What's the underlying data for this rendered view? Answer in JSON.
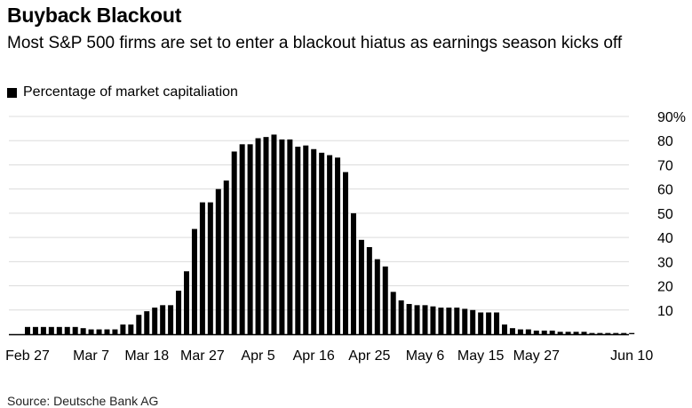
{
  "header": {
    "title": "Buyback Blackout",
    "subtitle": "Most S&P 500 firms are set to enter a blackout hiatus as earnings season kicks off"
  },
  "legend": {
    "label": "Percentage of market capitaliation"
  },
  "footer": {
    "source": "Source: Deutsche Bank AG"
  },
  "colors": {
    "bar": "#000000",
    "grid": "#dcdcdc",
    "axis": "#000000",
    "text": "#000000"
  },
  "chart_data": {
    "type": "bar",
    "title": "Buyback Blackout",
    "subtitle": "Most S&P 500 firms are set to enter a blackout hiatus as earnings season kicks off",
    "legend": [
      "Percentage of market capitaliation"
    ],
    "xlabel": "",
    "ylabel": "Percentage of market capitaliation",
    "ylim": [
      0,
      90
    ],
    "yticks": [
      10,
      20,
      30,
      40,
      50,
      60,
      70,
      80,
      90
    ],
    "ytick_labels": [
      "10",
      "20",
      "30",
      "40",
      "50",
      "60",
      "70",
      "80",
      "90%"
    ],
    "grid": true,
    "y_axis_side": "right",
    "x_tick_labels": [
      {
        "label": "Feb 27",
        "index": 0
      },
      {
        "label": "Mar 7",
        "index": 8
      },
      {
        "label": "Mar 18",
        "index": 15
      },
      {
        "label": "Mar 27",
        "index": 22
      },
      {
        "label": "Apr 5",
        "index": 29
      },
      {
        "label": "Apr 16",
        "index": 36
      },
      {
        "label": "Apr 25",
        "index": 43
      },
      {
        "label": "May 6",
        "index": 50
      },
      {
        "label": "May 15",
        "index": 57
      },
      {
        "label": "May 27",
        "index": 64
      },
      {
        "label": "Jun 10",
        "index": 76
      }
    ],
    "series": [
      {
        "name": "Percentage of market capitaliation",
        "values": [
          3,
          3,
          3,
          3,
          3,
          3,
          3,
          2.5,
          2,
          2,
          2,
          2,
          4,
          4,
          8,
          9.5,
          11,
          12,
          12,
          18,
          26,
          43.5,
          54.5,
          54.5,
          60,
          63.5,
          75.5,
          78.5,
          78.5,
          81,
          81.5,
          82.5,
          80.5,
          80.5,
          77.5,
          78,
          76.5,
          75,
          74,
          73,
          67,
          50,
          39,
          36,
          31,
          28,
          17.5,
          14,
          12.5,
          12,
          12,
          11.5,
          11,
          11,
          11,
          10.5,
          10,
          9,
          9,
          9,
          4,
          2.5,
          2,
          2,
          1.5,
          1.5,
          1.5,
          1,
          1,
          1,
          1,
          0.5,
          0.5,
          0.5,
          0.5,
          0.5,
          0.5
        ]
      }
    ]
  }
}
